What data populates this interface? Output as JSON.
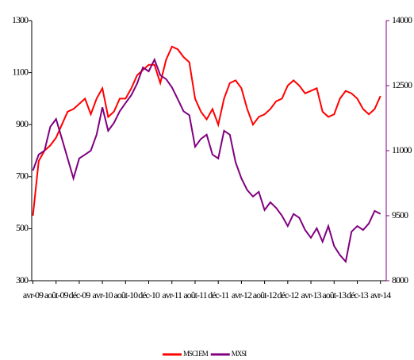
{
  "chart_data": {
    "type": "line",
    "x": [
      3,
      4,
      5,
      6,
      7,
      8,
      9,
      10,
      11,
      12,
      13,
      14,
      15,
      16,
      17,
      18,
      19,
      20,
      21,
      22,
      23,
      24,
      25,
      26,
      27,
      28,
      29,
      30,
      31,
      32,
      33,
      34,
      35,
      36,
      37,
      38,
      39,
      40,
      41,
      42,
      43,
      44,
      45,
      46,
      47,
      48,
      49,
      50,
      51,
      52,
      53,
      54,
      55,
      56,
      57,
      58,
      59,
      60,
      61,
      62,
      63
    ],
    "xlim": [
      2.8,
      64
    ],
    "xticks": [
      {
        "value": 3,
        "label": "avr-09"
      },
      {
        "value": 7,
        "label": "août-09"
      },
      {
        "value": 11,
        "label": "déc-09"
      },
      {
        "value": 15,
        "label": "avr-10"
      },
      {
        "value": 19,
        "label": "août-10"
      },
      {
        "value": 23,
        "label": "déc-10"
      },
      {
        "value": 27,
        "label": "avr-11"
      },
      {
        "value": 31,
        "label": "août-11"
      },
      {
        "value": 35,
        "label": "déc-11"
      },
      {
        "value": 39,
        "label": "avr-12"
      },
      {
        "value": 43,
        "label": "août-12"
      },
      {
        "value": 47,
        "label": "déc-12"
      },
      {
        "value": 51,
        "label": "avr-13"
      },
      {
        "value": 55,
        "label": "août-13"
      },
      {
        "value": 59,
        "label": "déc-13"
      },
      {
        "value": 63,
        "label": "avr-14"
      }
    ],
    "ylim": [
      300,
      1300
    ],
    "yticks": [
      300,
      500,
      700,
      900,
      1100,
      1300
    ],
    "y2lim": [
      8000,
      14000
    ],
    "y2ticks": [
      8000,
      9500,
      11000,
      12500,
      14000
    ],
    "y2color": "#800080",
    "legend": "bottom",
    "series": [
      {
        "name": "MSCI EM",
        "color": "#ff0000",
        "axis": "y",
        "values": [
          550,
          760,
          800,
          820,
          850,
          900,
          950,
          960,
          980,
          1000,
          940,
          1000,
          1040,
          930,
          950,
          1000,
          1000,
          1040,
          1090,
          1110,
          1130,
          1130,
          1060,
          1150,
          1200,
          1190,
          1160,
          1140,
          1000,
          950,
          920,
          960,
          900,
          1000,
          1060,
          1070,
          1040,
          960,
          900,
          930,
          940,
          960,
          990,
          1000,
          1050,
          1070,
          1050,
          1020,
          1030,
          1040,
          950,
          930,
          940,
          1000,
          1030,
          1020,
          1000,
          960,
          940,
          960,
          1010
        ]
      },
      {
        "name": "MXSI",
        "color": "#800080",
        "axis": "y2",
        "values": [
          10540,
          10910,
          11000,
          11550,
          11730,
          11280,
          10820,
          10360,
          10820,
          10910,
          11000,
          11370,
          12000,
          11460,
          11640,
          11910,
          12100,
          12280,
          12550,
          12920,
          12830,
          13100,
          12740,
          12650,
          12460,
          12190,
          11910,
          11820,
          11090,
          11270,
          11370,
          10910,
          10820,
          11460,
          11370,
          10730,
          10360,
          10090,
          9940,
          10050,
          9630,
          9810,
          9680,
          9500,
          9260,
          9540,
          9450,
          9170,
          8990,
          9210,
          8900,
          9260,
          8800,
          8590,
          8440,
          9130,
          9260,
          9170,
          9320,
          9610,
          9540
        ]
      }
    ]
  }
}
